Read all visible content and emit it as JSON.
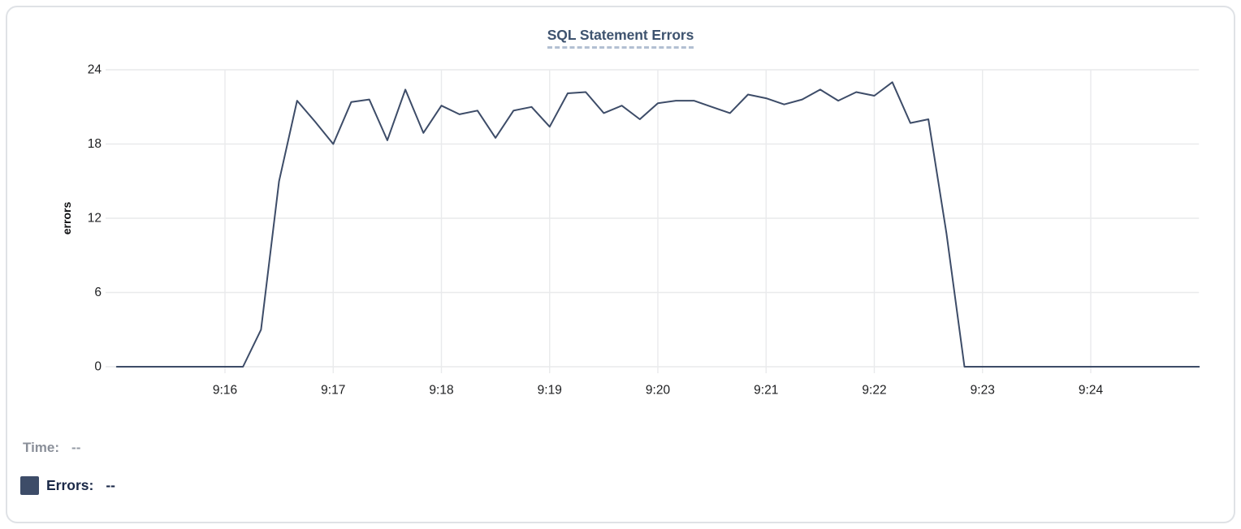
{
  "chart_data": {
    "type": "line",
    "title": "SQL Statement Errors",
    "xlabel": "",
    "ylabel": "errors",
    "ylim": [
      0,
      24
    ],
    "y_ticks": [
      0,
      6,
      12,
      18,
      24
    ],
    "x_domain": [
      "9:15:00",
      "9:25:00"
    ],
    "x_tick_labels": [
      "9:16",
      "9:17",
      "9:18",
      "9:19",
      "9:20",
      "9:21",
      "9:22",
      "9:23",
      "9:24"
    ],
    "grid": true,
    "legend_position": "bottom-left",
    "x": [
      "9:15:00",
      "9:15:10",
      "9:15:20",
      "9:15:30",
      "9:15:40",
      "9:15:50",
      "9:16:00",
      "9:16:10",
      "9:16:20",
      "9:16:30",
      "9:16:40",
      "9:16:50",
      "9:17:00",
      "9:17:10",
      "9:17:20",
      "9:17:30",
      "9:17:40",
      "9:17:50",
      "9:18:00",
      "9:18:10",
      "9:18:20",
      "9:18:30",
      "9:18:40",
      "9:18:50",
      "9:19:00",
      "9:19:10",
      "9:19:20",
      "9:19:30",
      "9:19:40",
      "9:19:50",
      "9:20:00",
      "9:20:10",
      "9:20:20",
      "9:20:30",
      "9:20:40",
      "9:20:50",
      "9:21:00",
      "9:21:10",
      "9:21:20",
      "9:21:30",
      "9:21:40",
      "9:21:50",
      "9:22:00",
      "9:22:10",
      "9:22:20",
      "9:22:30",
      "9:22:40",
      "9:22:50",
      "9:23:00",
      "9:23:10",
      "9:23:20",
      "9:23:30",
      "9:23:40",
      "9:23:50",
      "9:24:00",
      "9:24:10",
      "9:24:20",
      "9:24:30",
      "9:24:40",
      "9:24:50",
      "9:25:00"
    ],
    "series": [
      {
        "name": "Errors",
        "color": "#3d4c68",
        "values": [
          0,
          0,
          0,
          0,
          0,
          0,
          0,
          0,
          3,
          15,
          21.5,
          19.8,
          18,
          21.4,
          21.6,
          18.3,
          22.4,
          18.9,
          21.1,
          20.4,
          20.7,
          18.5,
          20.7,
          21,
          19.4,
          22.1,
          22.2,
          20.5,
          21.1,
          20,
          21.3,
          21.5,
          21.5,
          21,
          20.5,
          22,
          21.7,
          21.2,
          21.6,
          22.4,
          21.5,
          22.2,
          21.9,
          23,
          19.7,
          20,
          10.8,
          0,
          0,
          0,
          0,
          0,
          0,
          0,
          0,
          0,
          0,
          0,
          0,
          0,
          0
        ]
      }
    ]
  },
  "legend": {
    "time_label": "Time:",
    "time_value": "--",
    "errors_label": "Errors:",
    "errors_value": "--"
  },
  "colors": {
    "line": "#3d4c68",
    "title": "#3e536f",
    "title_underline": "#b3c0d2",
    "grid": "#e9eaec",
    "tick_text": "#1d1e20",
    "axis_label_text": "#0d0e10",
    "time_gray": "#8a8f99",
    "errors_navy": "#1b2948",
    "card_border": "#dfe2e6"
  }
}
